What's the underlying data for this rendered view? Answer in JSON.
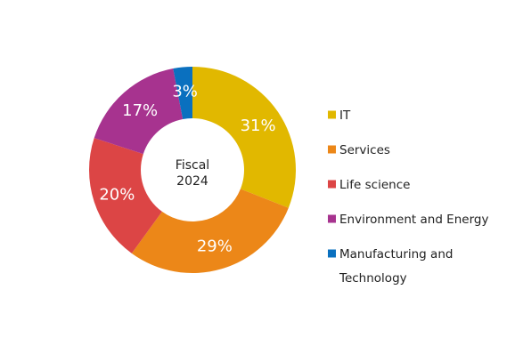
{
  "chart_data": {
    "type": "pie",
    "center_label": [
      "Fiscal",
      "2024"
    ],
    "slices": [
      {
        "label": "IT",
        "value": 31,
        "display": "31%",
        "color": "#E1B800"
      },
      {
        "label": "Services",
        "value": 29,
        "display": "29%",
        "color": "#EC8718"
      },
      {
        "label": "Life science",
        "value": 20,
        "display": "20%",
        "color": "#DC4545"
      },
      {
        "label": "Environment and Energy",
        "value": 17,
        "display": "17%",
        "color": "#A7338F"
      },
      {
        "label": "Manufacturing and Technology",
        "value": 3,
        "display": "3%",
        "color": "#0A70BF"
      }
    ],
    "legend": {
      "placement": "right",
      "entries": [
        {
          "lines": [
            "IT"
          ],
          "color": "#E1B800"
        },
        {
          "lines": [
            "Services"
          ],
          "color": "#EC8718"
        },
        {
          "lines": [
            "Life science"
          ],
          "color": "#DC4545"
        },
        {
          "lines": [
            "Environment and Energy"
          ],
          "color": "#A7338F"
        },
        {
          "lines": [
            "Manufacturing and",
            "Technology"
          ],
          "color": "#0A70BF"
        }
      ]
    }
  }
}
